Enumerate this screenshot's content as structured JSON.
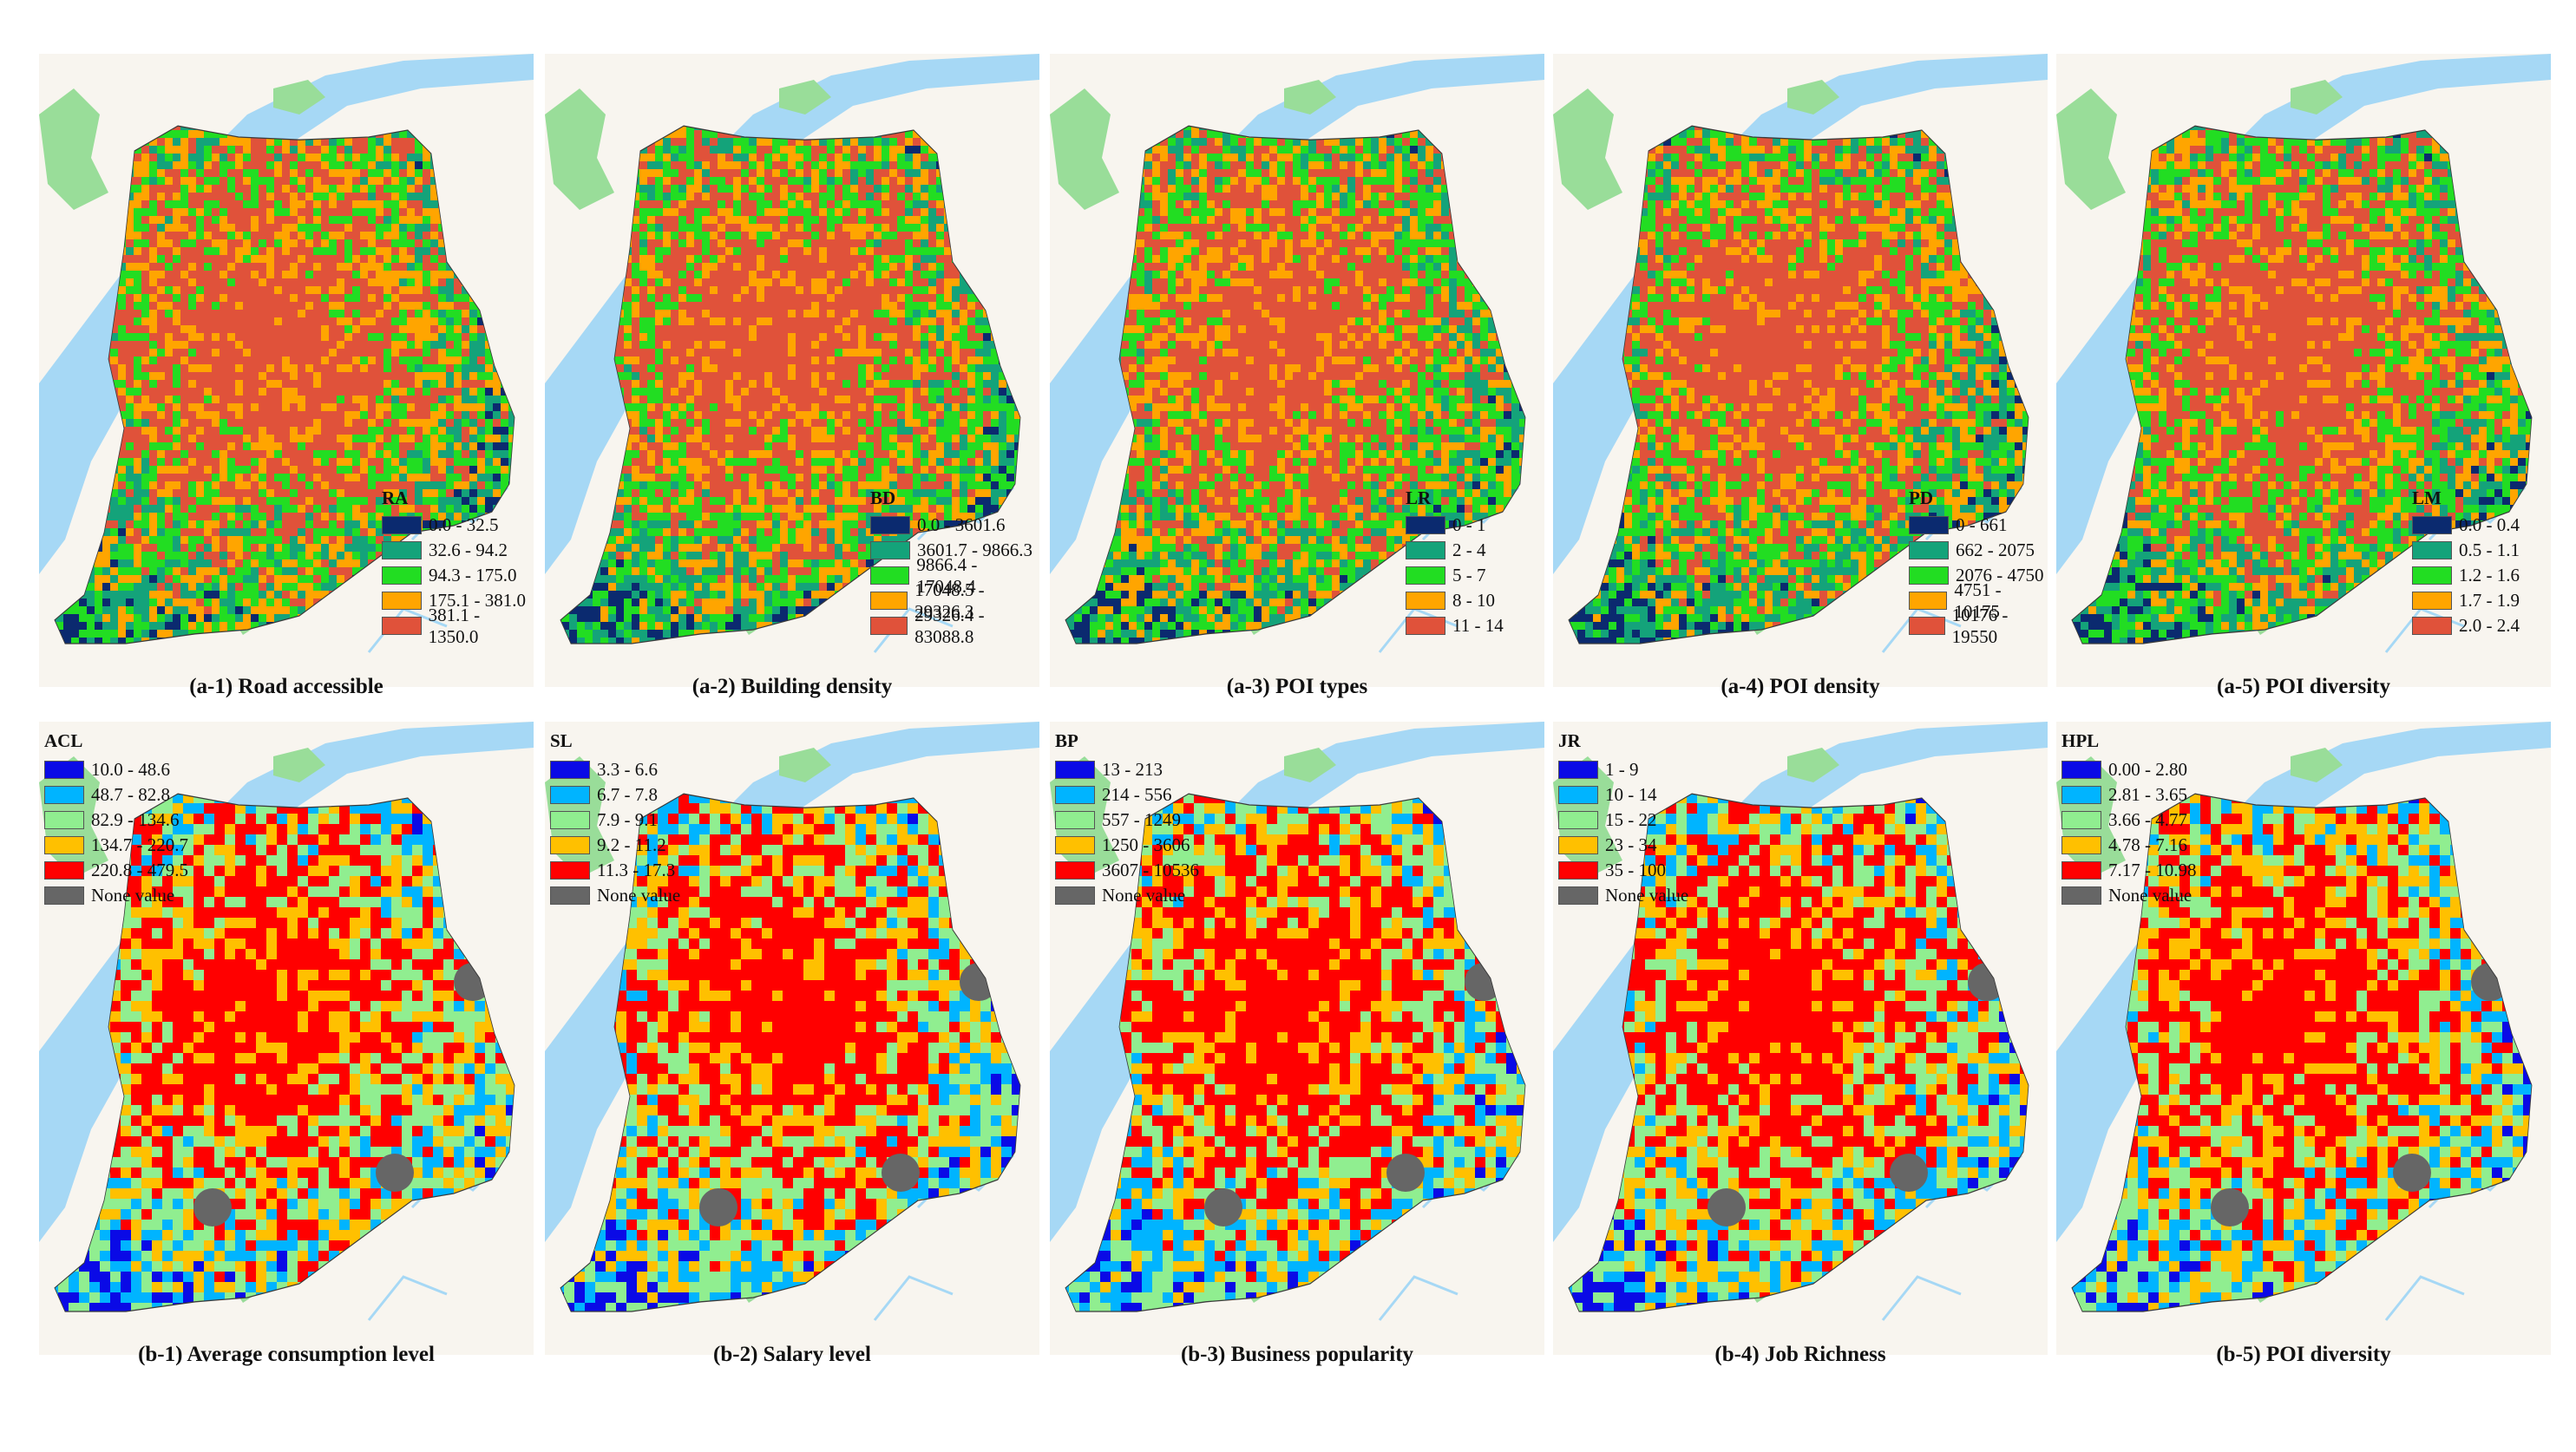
{
  "panels_a": [
    {
      "caption": "(a-1) Road accessible",
      "legend_title": "RA",
      "items": [
        "0.0 - 32.5",
        "32.6 - 94.2",
        "94.3 - 175.0",
        "175.1 - 381.0",
        "381.1 - 1350.0"
      ]
    },
    {
      "caption": "(a-2) Building density",
      "legend_title": "BD",
      "items": [
        "0.0 - 3601.6",
        "3601.7 - 9866.3",
        "9866.4 - 17048.4",
        "17048.5 - 29326.3",
        "29326.4 - 83088.8"
      ]
    },
    {
      "caption": "(a-3) POI types",
      "legend_title": "LR",
      "items": [
        "0 - 1",
        "2 - 4",
        "5 - 7",
        "8 - 10",
        "11 - 14"
      ]
    },
    {
      "caption": "(a-4) POI density",
      "legend_title": "PD",
      "items": [
        "0 - 661",
        "662 - 2075",
        "2076 - 4750",
        "4751 - 10175",
        "10176 - 19550"
      ]
    },
    {
      "caption": "(a-5) POI diversity",
      "legend_title": "LM",
      "items": [
        "0.0 - 0.4",
        "0.5 - 1.1",
        "1.2 - 1.6",
        "1.7 - 1.9",
        "2.0 - 2.4"
      ]
    }
  ],
  "panels_b": [
    {
      "caption": "(b-1) Average consumption level",
      "legend_title": "ACL",
      "items": [
        "10.0 - 48.6",
        "48.7 - 82.8",
        "82.9 - 134.6",
        "134.7 - 220.7",
        "220.8 - 479.5",
        "None value"
      ]
    },
    {
      "caption": "(b-2) Salary level",
      "legend_title": "SL",
      "items": [
        "3.3 - 6.6",
        "6.7 - 7.8",
        "7.9 - 9.1",
        "9.2 - 11.2",
        "11.3 - 17.3",
        "None value"
      ]
    },
    {
      "caption": "(b-3) Business popularity",
      "legend_title": "BP",
      "items": [
        "13 - 213",
        "214 - 556",
        "557 - 1249",
        "1250 - 3606",
        "3607 - 10536",
        "None value"
      ]
    },
    {
      "caption": "(b-4) Job Richness",
      "legend_title": "JR",
      "items": [
        "1 - 9",
        "10 - 14",
        "15 - 22",
        "23 - 34",
        "35 - 100",
        "None value"
      ]
    },
    {
      "caption": "(b-5) POI diversity",
      "legend_title": "HPL",
      "items": [
        "0.00 - 2.80",
        "2.81 - 3.65",
        "3.66 - 4.77",
        "4.78 - 7.16",
        "7.17 - 10.98",
        "None value"
      ]
    }
  ],
  "colors": {
    "a_classes": [
      "#0b2a6f",
      "#14a37a",
      "#22dd22",
      "#ffa500",
      "#e0523a"
    ],
    "b_classes": [
      "#0a0ae6",
      "#00b4ff",
      "#90ee90",
      "#ffc000",
      "#ff0000",
      "#666666"
    ],
    "water": "#a6d8f5",
    "green_space": "#99dd99",
    "background": "#f8f5ef"
  }
}
